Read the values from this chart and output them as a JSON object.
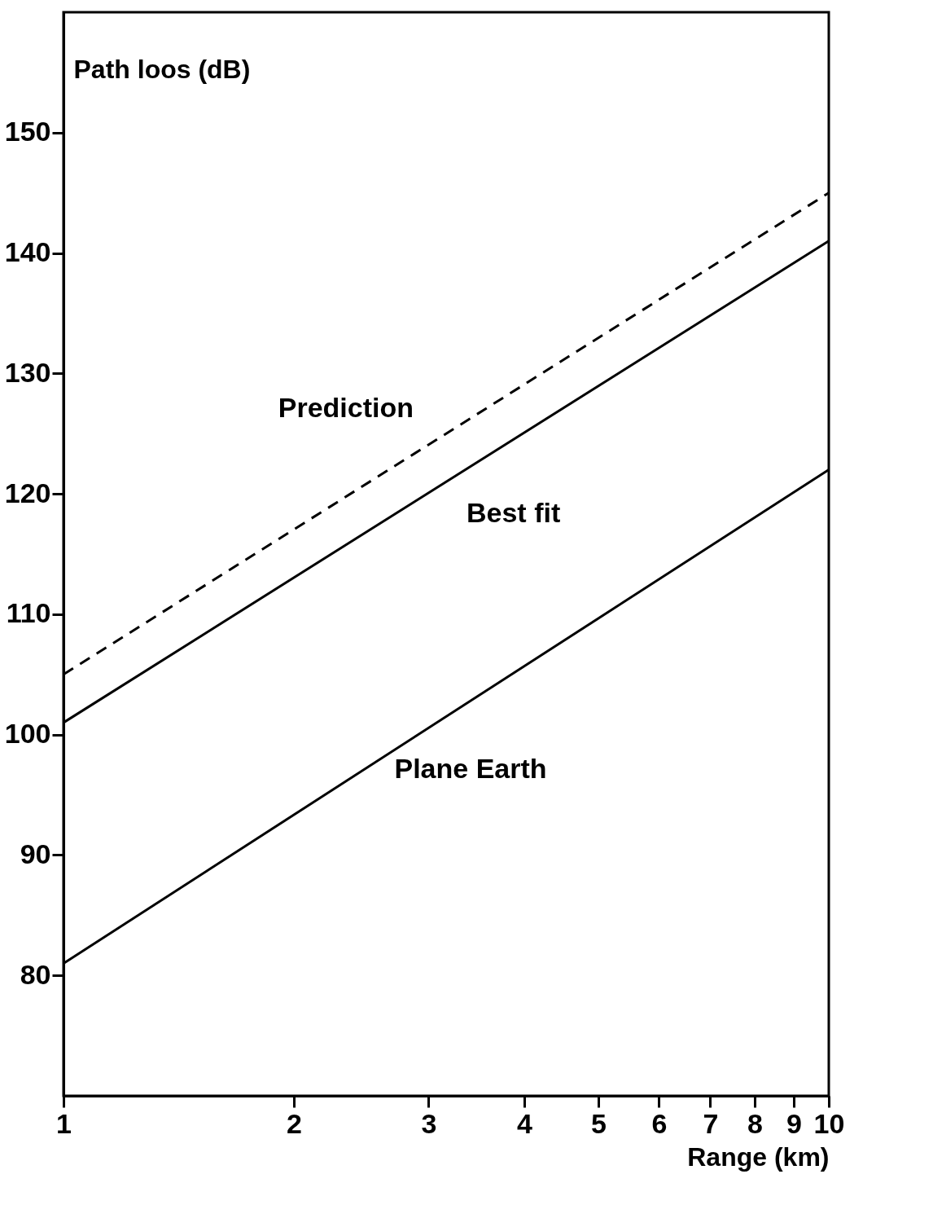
{
  "chart_data": {
    "type": "line",
    "xlabel": "Range (km)",
    "ylabel": "Path loos (dB)",
    "log": "x",
    "xlim": [
      1,
      10
    ],
    "xticks": [
      1,
      2,
      3,
      4,
      5,
      6,
      7,
      8,
      9,
      10
    ],
    "ylim": [
      70,
      160
    ],
    "yticks": [
      80,
      90,
      100,
      110,
      120,
      130,
      140,
      150
    ],
    "grid": false,
    "x": [
      1,
      10
    ],
    "series": [
      {
        "name": "Prediction",
        "color": "#000000",
        "line_style": "dashed",
        "values": [
          105,
          145
        ]
      },
      {
        "name": "Best fit",
        "color": "#000000",
        "line_style": "solid",
        "values": [
          101,
          141
        ]
      },
      {
        "name": "Plane Earth",
        "color": "#000000",
        "line_style": "solid",
        "values": [
          81,
          122
        ]
      }
    ]
  }
}
